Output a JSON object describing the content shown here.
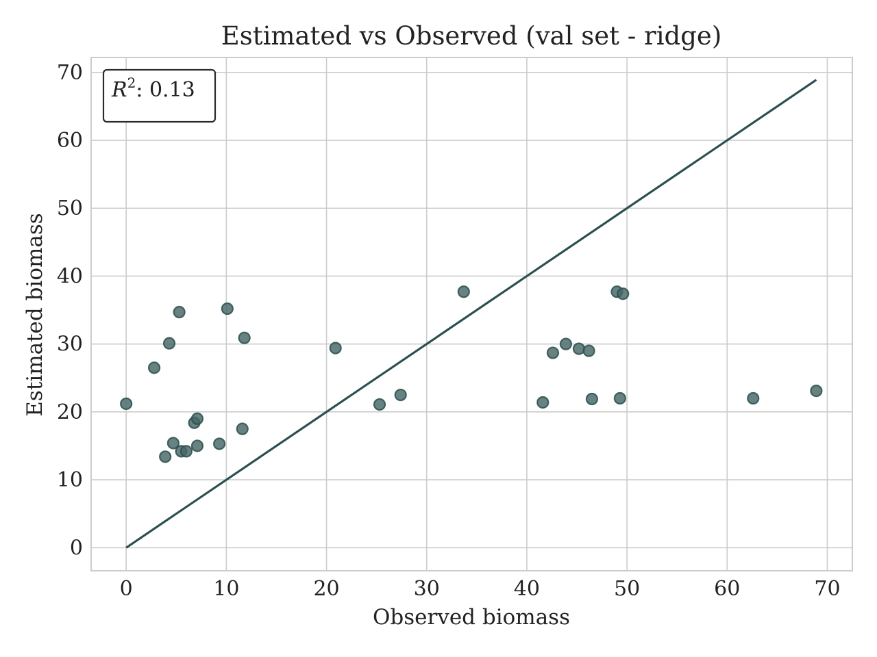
{
  "chart_data": {
    "type": "scatter",
    "title": "Estimated vs Observed (val set - ridge)",
    "xlabel": "Observed biomass",
    "ylabel": "Estimated biomass",
    "xlim": [
      -3.5,
      72.5
    ],
    "ylim": [
      -3.4,
      72.2
    ],
    "xticks": [
      0,
      10,
      20,
      30,
      40,
      50,
      60,
      70
    ],
    "yticks": [
      0,
      10,
      20,
      30,
      40,
      50,
      60,
      70
    ],
    "grid": true,
    "annotation": {
      "symbol": "R",
      "superscript": "2",
      "text": ": 0.13",
      "placement": "top-left"
    },
    "reference_line": {
      "x": [
        0,
        68.9
      ],
      "y": [
        0,
        68.9
      ]
    },
    "points": [
      {
        "x": 0.0,
        "y": 21.2
      },
      {
        "x": 2.8,
        "y": 26.5
      },
      {
        "x": 3.9,
        "y": 13.4
      },
      {
        "x": 4.3,
        "y": 30.1
      },
      {
        "x": 4.7,
        "y": 15.4
      },
      {
        "x": 5.3,
        "y": 34.7
      },
      {
        "x": 5.5,
        "y": 14.2
      },
      {
        "x": 6.0,
        "y": 14.2
      },
      {
        "x": 6.8,
        "y": 18.4
      },
      {
        "x": 7.1,
        "y": 19.0
      },
      {
        "x": 7.1,
        "y": 15.0
      },
      {
        "x": 9.3,
        "y": 15.3
      },
      {
        "x": 10.1,
        "y": 35.2
      },
      {
        "x": 11.6,
        "y": 17.5
      },
      {
        "x": 11.8,
        "y": 30.9
      },
      {
        "x": 20.9,
        "y": 29.4
      },
      {
        "x": 25.3,
        "y": 21.1
      },
      {
        "x": 27.4,
        "y": 22.5
      },
      {
        "x": 33.7,
        "y": 37.7
      },
      {
        "x": 41.6,
        "y": 21.4
      },
      {
        "x": 42.6,
        "y": 28.7
      },
      {
        "x": 43.9,
        "y": 30.0
      },
      {
        "x": 45.2,
        "y": 29.3
      },
      {
        "x": 46.2,
        "y": 29.0
      },
      {
        "x": 46.5,
        "y": 21.9
      },
      {
        "x": 49.0,
        "y": 37.7
      },
      {
        "x": 49.3,
        "y": 22.0
      },
      {
        "x": 49.6,
        "y": 37.4
      },
      {
        "x": 62.6,
        "y": 22.0
      },
      {
        "x": 68.9,
        "y": 23.1
      }
    ],
    "colors": {
      "line": "#2c4f4f",
      "point_fill": "#476767",
      "point_opacity": 0.82
    }
  }
}
